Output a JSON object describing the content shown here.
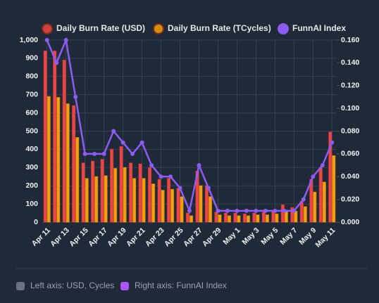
{
  "chart_data": {
    "type": "bar",
    "categories": [
      "Apr 11",
      null,
      "Apr 13",
      null,
      "Apr 15",
      null,
      "Apr 17",
      null,
      "Apr 19",
      null,
      "Apr 21",
      null,
      "Apr 23",
      null,
      "Apr 25",
      null,
      "Apr 27",
      null,
      "Apr 29",
      null,
      "May 1",
      null,
      "May 3",
      null,
      "May 5",
      null,
      "May 7",
      null,
      "May 9",
      null,
      "May 11"
    ],
    "series": [
      {
        "name": "Daily Burn Rate (USD)",
        "color": "#ef4444",
        "values": [
          940,
          940,
          890,
          640,
          325,
          335,
          345,
          400,
          415,
          325,
          320,
          300,
          235,
          240,
          185,
          50,
          280,
          200,
          55,
          50,
          50,
          45,
          50,
          55,
          60,
          95,
          80,
          115,
          235,
          300,
          495
        ]
      },
      {
        "name": "Daily Burn Rate (TCycles)",
        "color": "#f59e0b",
        "values": [
          690,
          685,
          650,
          465,
          240,
          250,
          255,
          295,
          300,
          240,
          240,
          210,
          175,
          180,
          140,
          35,
          200,
          140,
          40,
          35,
          35,
          35,
          40,
          40,
          45,
          60,
          60,
          85,
          165,
          220,
          365
        ]
      },
      {
        "name": "FunnAI Index",
        "color": "#8b5cf6",
        "axis": "y2",
        "values": [
          0.16,
          0.14,
          0.16,
          0.11,
          0.06,
          0.06,
          0.06,
          0.08,
          0.07,
          0.06,
          0.07,
          0.05,
          0.04,
          0.04,
          0.03,
          0.01,
          0.05,
          0.03,
          0.01,
          0.01,
          0.01,
          0.01,
          0.01,
          0.01,
          0.01,
          0.01,
          0.01,
          0.02,
          0.04,
          0.05,
          0.07
        ]
      }
    ],
    "ylim": [
      0,
      1000
    ],
    "yticks": [
      0,
      100,
      200,
      300,
      400,
      500,
      600,
      700,
      800,
      900,
      {
        "value": 1000,
        "label": "1,000"
      }
    ],
    "y2lim": [
      0,
      0.16
    ],
    "y2ticks": [
      {
        "value": 0,
        "label": "0.000"
      },
      {
        "value": 0.02,
        "label": "0.020"
      },
      {
        "value": 0.04,
        "label": "0.040"
      },
      {
        "value": 0.06,
        "label": "0.060"
      },
      {
        "value": 0.08,
        "label": "0.080"
      },
      {
        "value": 0.1,
        "label": "0.100"
      },
      {
        "value": 0.12,
        "label": "0.120"
      },
      {
        "value": 0.14,
        "label": "0.140"
      },
      {
        "value": 0.16,
        "label": "0.160"
      }
    ],
    "grid": true,
    "footer": [
      {
        "label": "Left axis: USD, Cycles",
        "color": "#6b7280"
      },
      {
        "label": "Right axis: FunnAI Index",
        "color": "#a855f7"
      }
    ]
  }
}
